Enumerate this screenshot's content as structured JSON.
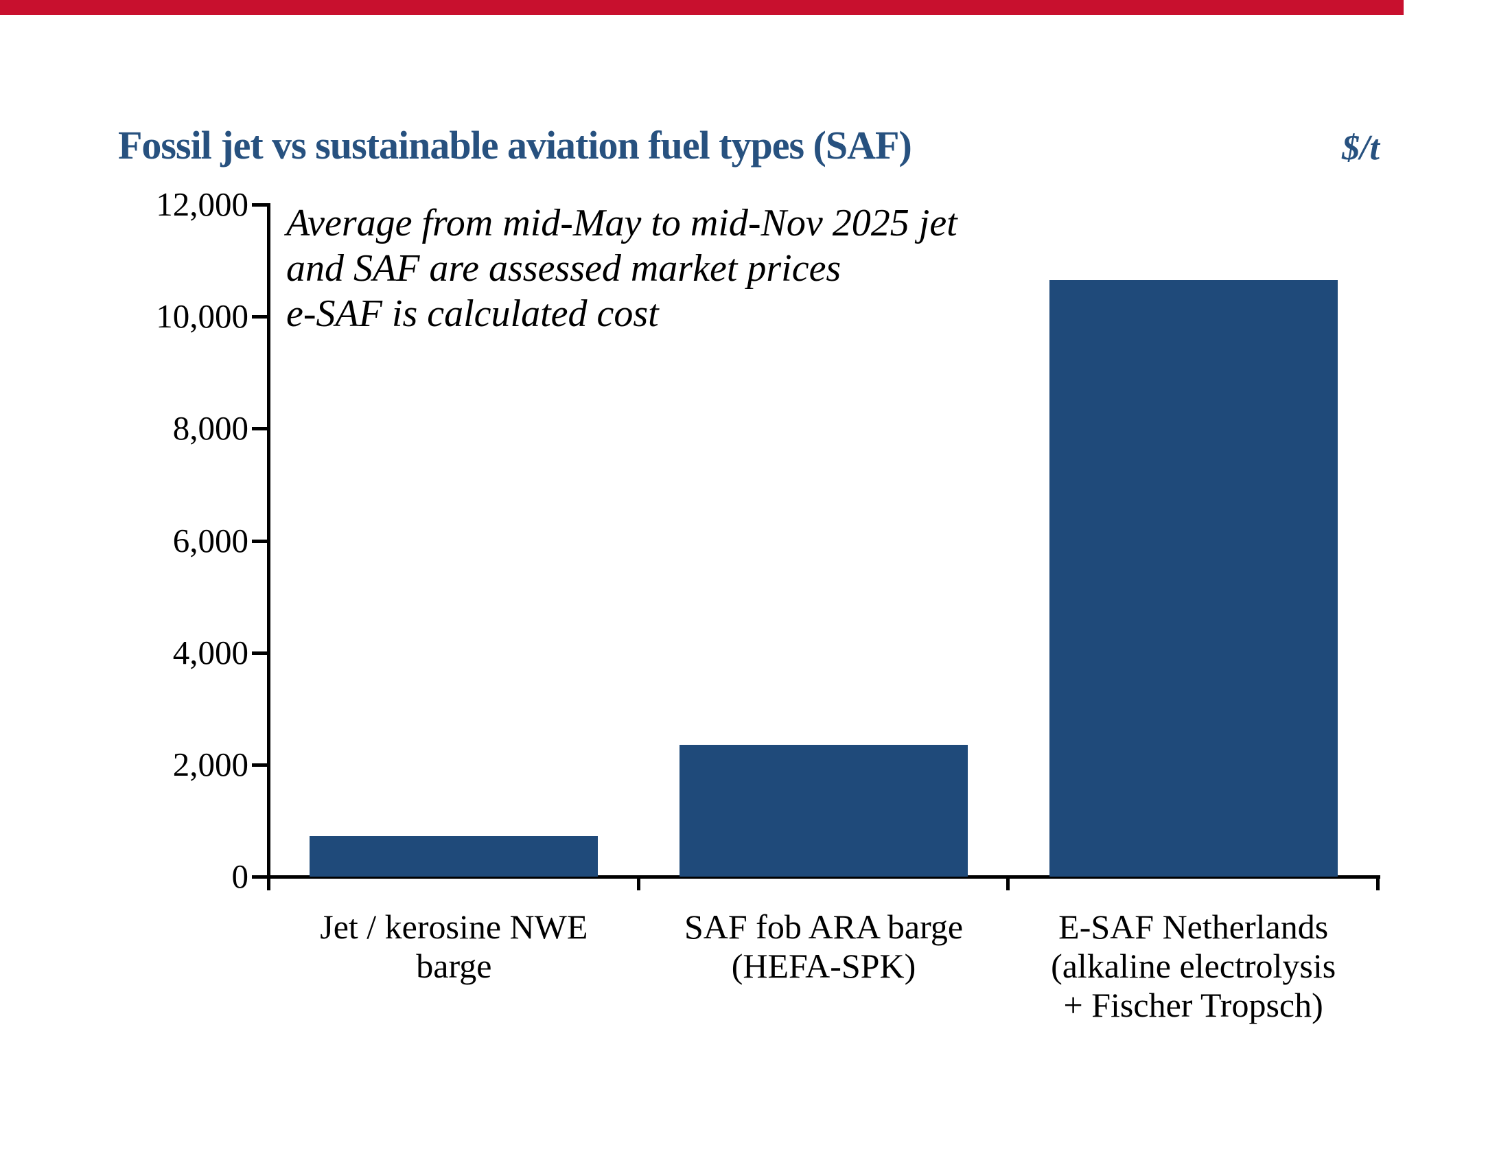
{
  "header": {
    "title": "Fossil jet vs sustainable aviation fuel types (SAF)",
    "unit": "$/t"
  },
  "annotation": {
    "lines": [
      "Average from mid-May to mid-Nov 2025 jet",
      "and SAF are assessed market prices",
      "e-SAF is calculated cost"
    ]
  },
  "colors": {
    "accent_red": "#C8102E",
    "bar_blue": "#1F4A7A",
    "title_blue": "#27517F",
    "axis_black": "#000000",
    "background": "#FFFFFF"
  },
  "chart_data": {
    "type": "bar",
    "title": "Fossil jet vs sustainable aviation fuel types (SAF)",
    "unit_label": "$/t",
    "annotation": "Average from mid-May to mid-Nov 2025 jet and SAF are assessed market prices; e-SAF is calculated cost",
    "categories": [
      "Jet / kerosine NWE barge",
      "SAF fob ARA barge (HEFA-SPK)",
      "E-SAF Netherlands (alkaline electrolysis + Fischer Tropsch)"
    ],
    "category_lines": [
      [
        "Jet / kerosine NWE",
        "barge"
      ],
      [
        "SAF fob ARA barge",
        "(HEFA-SPK)"
      ],
      [
        "E-SAF Netherlands",
        "(alkaline electrolysis",
        "+ Fischer Tropsch)"
      ]
    ],
    "values": [
      720,
      2350,
      10650
    ],
    "ylabel": "",
    "xlabel": "",
    "ylim": [
      0,
      12000
    ],
    "yticks": [
      0,
      2000,
      4000,
      6000,
      8000,
      10000,
      12000
    ],
    "ytick_labels": [
      "0",
      "2,000",
      "4,000",
      "6,000",
      "8,000",
      "10,000",
      "12,000"
    ],
    "grid": false,
    "legend_position": "none",
    "bar_color": "#1F4A7A"
  }
}
